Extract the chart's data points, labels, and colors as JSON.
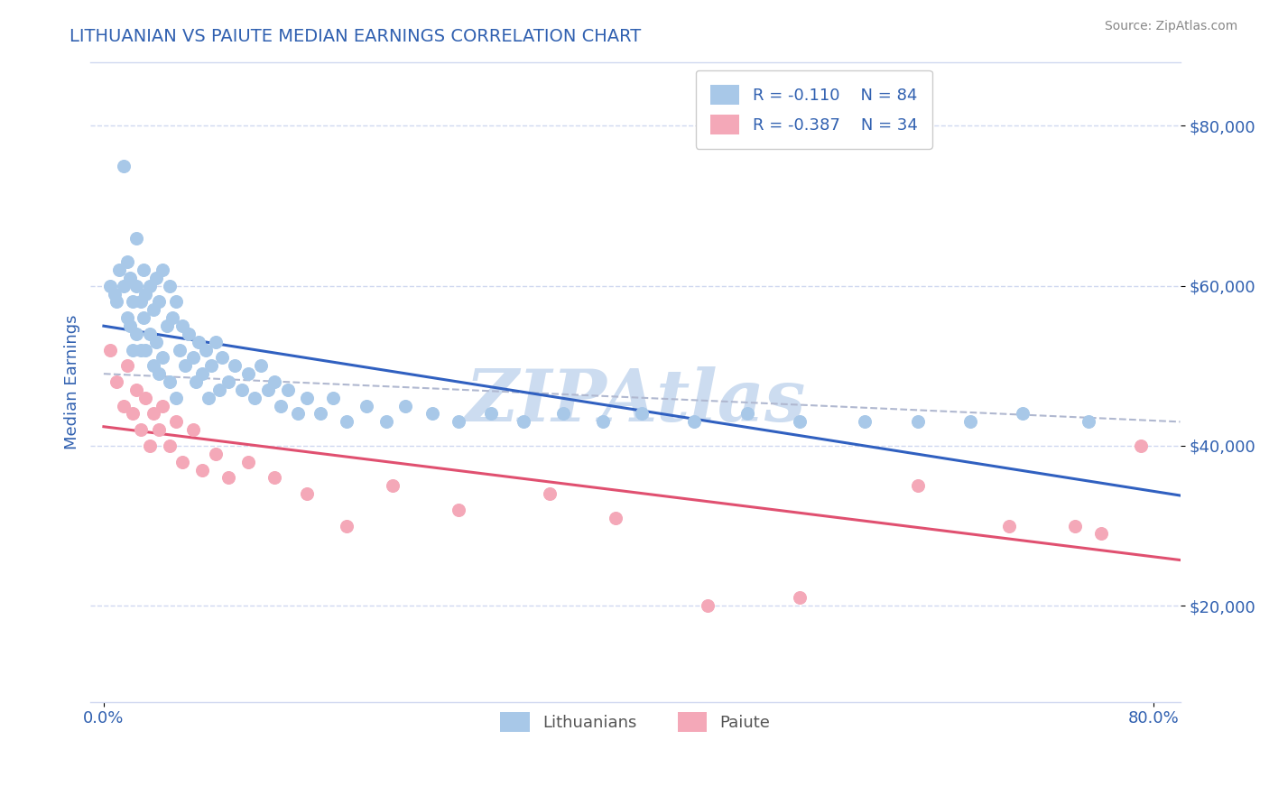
{
  "title": "LITHUANIAN VS PAIUTE MEDIAN EARNINGS CORRELATION CHART",
  "source_text": "Source: ZipAtlas.com",
  "ylabel": "Median Earnings",
  "R_lith": -0.11,
  "N_lith": 84,
  "R_paiute": -0.387,
  "N_paiute": 34,
  "lith_color": "#a8c8e8",
  "paiute_color": "#f4a8b8",
  "lith_line_color": "#3060c0",
  "paiute_line_color": "#e05070",
  "grey_dash_color": "#b0b8d0",
  "title_color": "#3060b0",
  "tick_label_color": "#3060b0",
  "legend_text_color": "#3060b0",
  "watermark_text": "ZIPAtlas",
  "watermark_color": "#ccdcf0",
  "ylim": [
    8000,
    88000
  ],
  "xlim": [
    -0.01,
    0.82
  ],
  "yticks": [
    20000,
    40000,
    60000,
    80000
  ],
  "ytick_labels": [
    "$20,000",
    "$40,000",
    "$60,000",
    "$80,000"
  ],
  "xticks": [
    0.0,
    0.8
  ],
  "xtick_labels": [
    "0.0%",
    "80.0%"
  ],
  "lith_x": [
    0.005,
    0.008,
    0.01,
    0.012,
    0.015,
    0.015,
    0.018,
    0.018,
    0.02,
    0.02,
    0.022,
    0.022,
    0.025,
    0.025,
    0.025,
    0.028,
    0.028,
    0.03,
    0.03,
    0.032,
    0.032,
    0.035,
    0.035,
    0.038,
    0.038,
    0.04,
    0.04,
    0.042,
    0.042,
    0.045,
    0.045,
    0.048,
    0.05,
    0.05,
    0.052,
    0.055,
    0.055,
    0.058,
    0.06,
    0.062,
    0.065,
    0.068,
    0.07,
    0.072,
    0.075,
    0.078,
    0.08,
    0.082,
    0.085,
    0.088,
    0.09,
    0.095,
    0.1,
    0.105,
    0.11,
    0.115,
    0.12,
    0.125,
    0.13,
    0.135,
    0.14,
    0.148,
    0.155,
    0.165,
    0.175,
    0.185,
    0.2,
    0.215,
    0.23,
    0.25,
    0.27,
    0.295,
    0.32,
    0.35,
    0.38,
    0.41,
    0.45,
    0.49,
    0.53,
    0.58,
    0.62,
    0.66,
    0.7,
    0.75
  ],
  "lith_y": [
    60000,
    59000,
    58000,
    62000,
    75000,
    60000,
    63000,
    56000,
    61000,
    55000,
    58000,
    52000,
    66000,
    60000,
    54000,
    58000,
    52000,
    62000,
    56000,
    59000,
    52000,
    60000,
    54000,
    57000,
    50000,
    61000,
    53000,
    58000,
    49000,
    62000,
    51000,
    55000,
    60000,
    48000,
    56000,
    58000,
    46000,
    52000,
    55000,
    50000,
    54000,
    51000,
    48000,
    53000,
    49000,
    52000,
    46000,
    50000,
    53000,
    47000,
    51000,
    48000,
    50000,
    47000,
    49000,
    46000,
    50000,
    47000,
    48000,
    45000,
    47000,
    44000,
    46000,
    44000,
    46000,
    43000,
    45000,
    43000,
    45000,
    44000,
    43000,
    44000,
    43000,
    44000,
    43000,
    44000,
    43000,
    44000,
    43000,
    43000,
    43000,
    43000,
    44000,
    43000
  ],
  "paiute_x": [
    0.005,
    0.01,
    0.015,
    0.018,
    0.022,
    0.025,
    0.028,
    0.032,
    0.035,
    0.038,
    0.042,
    0.045,
    0.05,
    0.055,
    0.06,
    0.068,
    0.075,
    0.085,
    0.095,
    0.11,
    0.13,
    0.155,
    0.185,
    0.22,
    0.27,
    0.34,
    0.39,
    0.46,
    0.53,
    0.62,
    0.69,
    0.74,
    0.76,
    0.79
  ],
  "paiute_y": [
    52000,
    48000,
    45000,
    50000,
    44000,
    47000,
    42000,
    46000,
    40000,
    44000,
    42000,
    45000,
    40000,
    43000,
    38000,
    42000,
    37000,
    39000,
    36000,
    38000,
    36000,
    34000,
    30000,
    35000,
    32000,
    34000,
    31000,
    20000,
    21000,
    35000,
    30000,
    30000,
    29000,
    40000
  ],
  "grey_line_x": [
    0.0,
    0.82
  ],
  "grey_line_y": [
    49000,
    43000
  ]
}
